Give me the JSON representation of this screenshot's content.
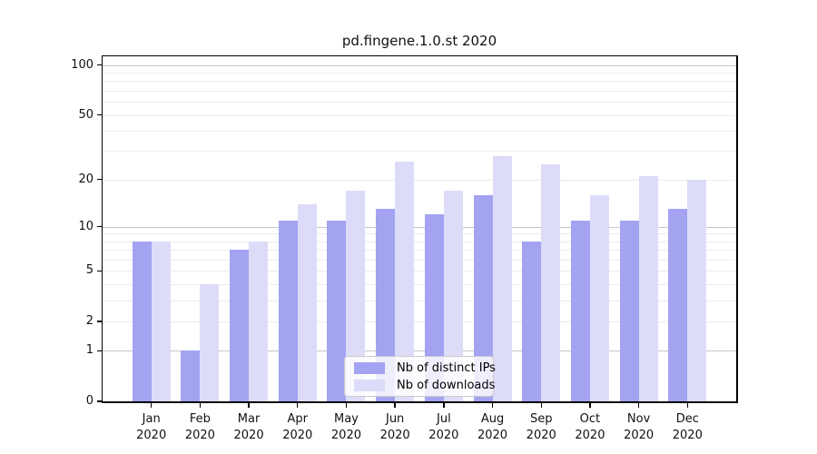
{
  "title": "pd.fingene.1.0.st 2020",
  "chart_data": {
    "type": "bar",
    "title": "pd.fingene.1.0.st 2020",
    "categories": [
      "Jan 2020",
      "Feb 2020",
      "Mar 2020",
      "Apr 2020",
      "May 2020",
      "Jun 2020",
      "Jul 2020",
      "Aug 2020",
      "Sep 2020",
      "Oct 2020",
      "Nov 2020",
      "Dec 2020"
    ],
    "x": {
      "months": [
        "Jan",
        "Feb",
        "Mar",
        "Apr",
        "May",
        "Jun",
        "Jul",
        "Aug",
        "Sep",
        "Oct",
        "Nov",
        "Dec"
      ],
      "year": "2020"
    },
    "series": [
      {
        "name": "Nb of distinct IPs",
        "color": "#a3a3f2",
        "values": [
          8,
          1,
          7,
          11,
          11,
          13,
          12,
          16,
          8,
          11,
          11,
          13
        ]
      },
      {
        "name": "Nb of downloads",
        "color": "#dcdcf9",
        "values": [
          8,
          4,
          8,
          14,
          17,
          26,
          17,
          28,
          25,
          16,
          21,
          20
        ]
      }
    ],
    "xlabel": "",
    "ylabel": "",
    "yscale": "log1p",
    "ylim": [
      0,
      113
    ],
    "yticks": [
      0,
      1,
      2,
      5,
      10,
      20,
      50,
      100
    ],
    "grid": {
      "major": [
        1,
        10,
        100
      ],
      "minor": [
        2,
        3,
        4,
        5,
        6,
        7,
        8,
        9,
        20,
        30,
        40,
        50,
        60,
        70,
        80,
        90
      ],
      "major_color": "#c6c6c6",
      "minor_color": "#ececec"
    },
    "legend_position": "lower center"
  }
}
